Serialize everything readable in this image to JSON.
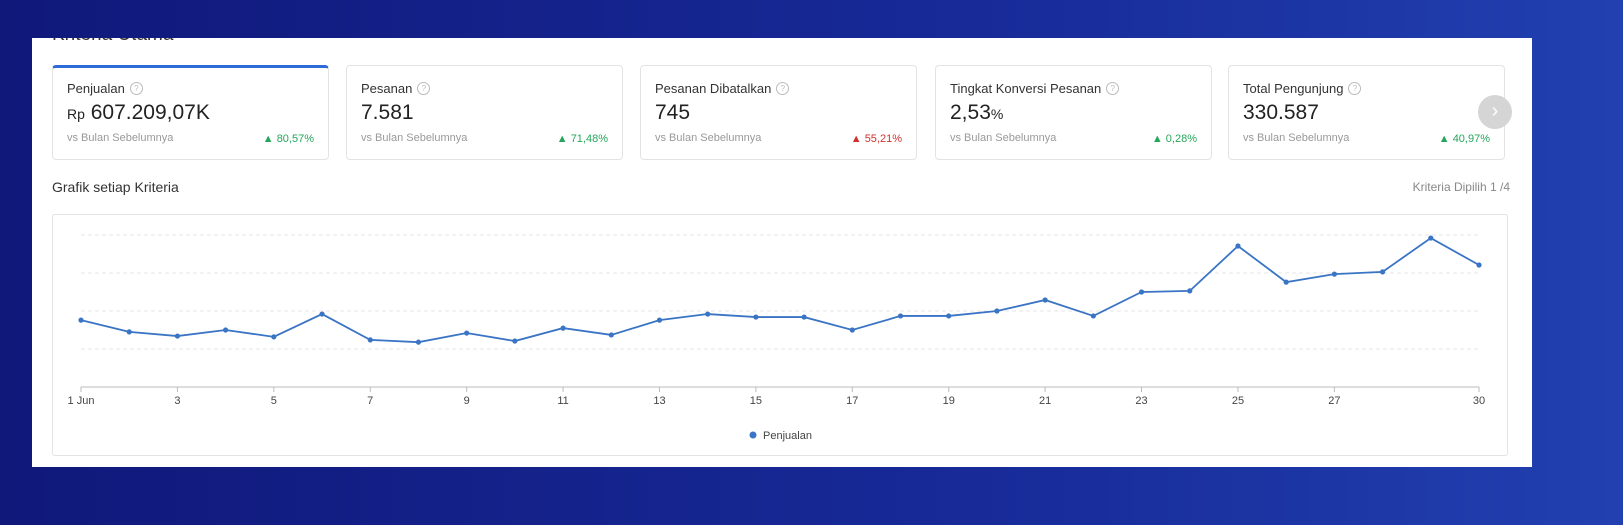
{
  "section_title": "Kriteria Utama",
  "cards": [
    {
      "label": "Penjualan",
      "prefix": "Rp",
      "value": "607.209,07K",
      "unit": "",
      "compare": "vs Bulan Sebelumnya",
      "change": "80,57%",
      "direction": "up"
    },
    {
      "label": "Pesanan",
      "prefix": "",
      "value": "7.581",
      "unit": "",
      "compare": "vs Bulan Sebelumnya",
      "change": "71,48%",
      "direction": "up"
    },
    {
      "label": "Pesanan Dibatalkan",
      "prefix": "",
      "value": "745",
      "unit": "",
      "compare": "vs Bulan Sebelumnya",
      "change": "55,21%",
      "direction": "up-bad"
    },
    {
      "label": "Tingkat Konversi Pesanan",
      "prefix": "",
      "value": "2,53",
      "unit": "%",
      "compare": "vs Bulan Sebelumnya",
      "change": "0,28%",
      "direction": "up"
    },
    {
      "label": "Total Pengunjung",
      "prefix": "",
      "value": "330.587",
      "unit": "",
      "compare": "vs Bulan Sebelumnya",
      "change": "40,97%",
      "direction": "up"
    }
  ],
  "icons": {
    "help": "?",
    "up": "▲",
    "next": "›"
  },
  "chart_title": "Grafik setiap Kriteria",
  "chart_selected": "Kriteria Dipilih 1 /4",
  "colors": {
    "accent": "#2f6bd6",
    "up": "#26a65b",
    "down": "#d0312d",
    "line": "#3a74c4"
  },
  "chart_data": {
    "type": "line",
    "title": "",
    "xlabel": "",
    "ylabel": "",
    "x": [
      1,
      2,
      3,
      4,
      5,
      6,
      7,
      8,
      9,
      10,
      11,
      12,
      13,
      14,
      15,
      16,
      17,
      18,
      19,
      20,
      21,
      22,
      23,
      24,
      25,
      26,
      27,
      28,
      29,
      30
    ],
    "xticks": [
      "1 Jun",
      "3",
      "5",
      "7",
      "9",
      "11",
      "13",
      "15",
      "17",
      "19",
      "21",
      "23",
      "25",
      "27",
      "30"
    ],
    "xtick_values": [
      1,
      3,
      5,
      7,
      9,
      11,
      13,
      15,
      17,
      19,
      21,
      23,
      25,
      27,
      30
    ],
    "series": [
      {
        "name": "Penjualan",
        "values": [
          1.76,
          1.45,
          1.34,
          1.5,
          1.32,
          1.92,
          1.24,
          1.18,
          1.42,
          1.21,
          1.55,
          1.37,
          1.76,
          1.92,
          1.84,
          1.84,
          1.5,
          1.87,
          1.87,
          2.0,
          2.29,
          1.87,
          2.5,
          2.53,
          3.71,
          2.76,
          2.97,
          3.03,
          3.92,
          3.21
        ]
      }
    ],
    "ylim": [
      0,
      4
    ],
    "grid": true,
    "legend": "bottom-center",
    "note": "y-axis unlabeled; values in relative gridline units"
  }
}
